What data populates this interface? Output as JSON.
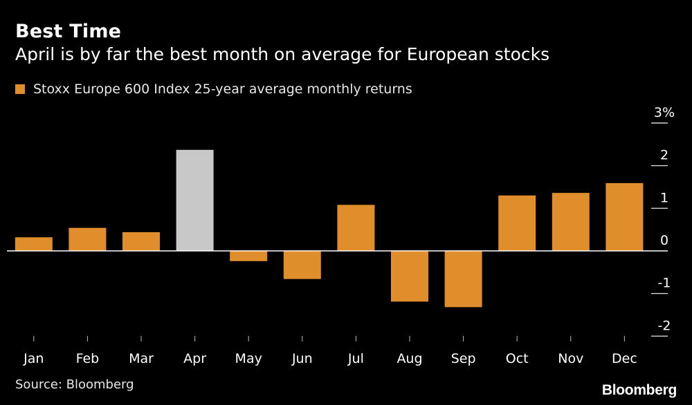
{
  "header": {
    "title": "Best Time",
    "subtitle": "April is by far the best month on average for European stocks"
  },
  "legend": {
    "label": "Stoxx Europe 600 Index 25-year average monthly returns"
  },
  "footer": {
    "source": "Source: Bloomberg",
    "brand": "Bloomberg"
  },
  "colors": {
    "bar": "#e08e2b",
    "highlight": "#c8c8c8",
    "background": "#000000",
    "axis": "#ffffff"
  },
  "chart_data": {
    "type": "bar",
    "title": "Best Time",
    "subtitle": "April is by far the best month on average for European stocks",
    "categories": [
      "Jan",
      "Feb",
      "Mar",
      "Apr",
      "May",
      "Jun",
      "Jul",
      "Aug",
      "Sep",
      "Oct",
      "Nov",
      "Dec"
    ],
    "series": [
      {
        "name": "Stoxx Europe 600 Index 25-year average monthly returns",
        "values": [
          0.32,
          0.54,
          0.44,
          2.37,
          -0.24,
          -0.66,
          1.08,
          -1.19,
          -1.32,
          1.3,
          1.36,
          1.59
        ]
      }
    ],
    "highlight_category": "Apr",
    "ylim": [
      -2,
      3
    ],
    "yticks": [
      {
        "value": 3,
        "label": "3%"
      },
      {
        "value": 2,
        "label": "2"
      },
      {
        "value": 1,
        "label": "1"
      },
      {
        "value": 0,
        "label": "0"
      },
      {
        "value": -1,
        "label": "-1"
      },
      {
        "value": -2,
        "label": "-2"
      }
    ],
    "xlabel": "",
    "ylabel": "",
    "grid": false,
    "legend_position": "top-left",
    "axis_side": "right"
  }
}
